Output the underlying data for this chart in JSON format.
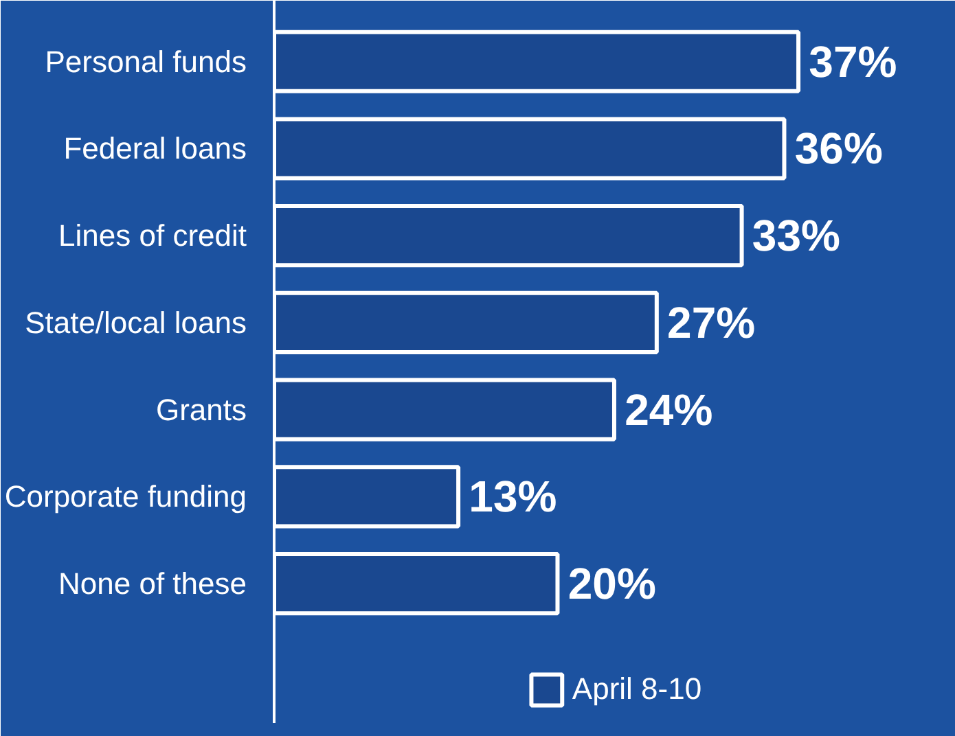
{
  "chart_data": {
    "type": "bar",
    "orientation": "horizontal",
    "categories": [
      "Personal funds",
      "Federal loans",
      "Lines of credit",
      "State/local loans",
      "Grants",
      "Corporate funding",
      "None of these"
    ],
    "series": [
      {
        "name": "April 8-10",
        "color": "#ffffff",
        "values": [
          37,
          36,
          33,
          27,
          24,
          13,
          20
        ],
        "value_labels": [
          "37%",
          "36%",
          "33%",
          "27%",
          "24%",
          "13%",
          "20%"
        ]
      }
    ],
    "legend": "bottom",
    "grid": false
  }
}
